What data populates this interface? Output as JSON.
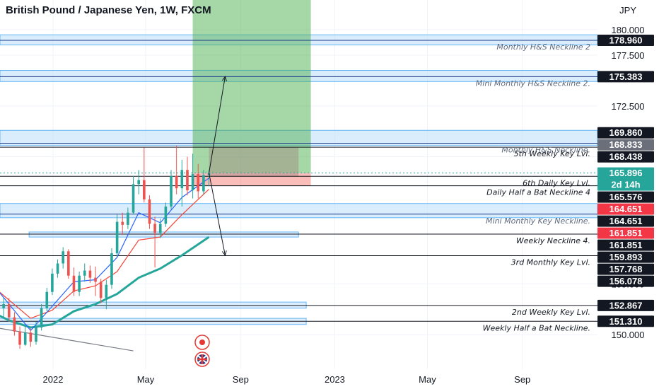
{
  "title": "British Pound / Japanese Yen, 1W, FXCM",
  "currency": "JPY",
  "colors": {
    "up": "#26a69a",
    "down": "#ef5350",
    "zone_fill": "#bbdefb",
    "zone_stroke": "#64b5f6",
    "target_fill": "#4caf50",
    "stop_fill": "#f44336",
    "ema_fast": "#2962ff",
    "ema_mid": "#f44336",
    "ema_slow": "#26a69a",
    "trend": "#787b86"
  },
  "chart_data": {
    "type": "candlestick",
    "y_axis": {
      "scale": "linear",
      "ticks": [
        "180.000",
        "177.500",
        "172.500",
        "167.500",
        "155.000",
        "150.000"
      ]
    },
    "x_axis": {
      "ticks": [
        "2022",
        "May",
        "Sep",
        "2023",
        "May",
        "Sep"
      ]
    },
    "price_badges": [
      {
        "value": "178.960",
        "style": "dark"
      },
      {
        "value": "175.383",
        "style": "dark"
      },
      {
        "value": "169.860",
        "style": "dark"
      },
      {
        "value": "168.833",
        "style": "grey"
      },
      {
        "value": "168.438",
        "style": "dark"
      },
      {
        "value": "165.896",
        "style": "teal",
        "sub": "2d 14h"
      },
      {
        "value": "165.576",
        "style": "dark"
      },
      {
        "value": "164.651",
        "style": "red"
      },
      {
        "value": "164.651",
        "style": "dark"
      },
      {
        "value": "161.851",
        "style": "red"
      },
      {
        "value": "161.851",
        "style": "dark"
      },
      {
        "value": "159.893",
        "style": "dark"
      },
      {
        "value": "157.768",
        "style": "dark"
      },
      {
        "value": "156.078",
        "style": "dark"
      },
      {
        "value": "152.867",
        "style": "dark"
      },
      {
        "value": "151.310",
        "style": "dark"
      }
    ],
    "levels": [
      {
        "label": "Monthly H&S Neckline 2",
        "price": 178.96,
        "kind": "zone",
        "top": 179.5,
        "bottom": 178.5
      },
      {
        "label": "Mini Monthly H&S Neckline 2.",
        "price": 175.383,
        "kind": "zone",
        "top": 176.0,
        "bottom": 174.9
      },
      {
        "label": "Monthly H&S Neckline.",
        "price": 168.833,
        "kind": "zone",
        "top": 170.1,
        "bottom": 168.6
      },
      {
        "label": "5th Weekly Key Lvl.",
        "price": 168.438,
        "kind": "line"
      },
      {
        "label": "6th Daily Key Lvl.",
        "price": 165.576,
        "kind": "line"
      },
      {
        "label": "Daily Half a Bat Neckline 4",
        "price": 164.651,
        "kind": "line"
      },
      {
        "label": "Mini Monthly Key Neckline.",
        "price": 161.851,
        "kind": "zone",
        "top": 162.9,
        "bottom": 161.5
      },
      {
        "label": "Weekly Neckline 4.",
        "price": 159.893,
        "kind": "line"
      },
      {
        "label": "3rd Monthly Key Lvl.",
        "price": 157.768,
        "kind": "line"
      },
      {
        "label": "2nd Weekly Key Lvl.",
        "price": 152.867,
        "kind": "line"
      },
      {
        "label": "Weekly Half a Bat Neckline.",
        "price": 151.31,
        "kind": "line"
      }
    ],
    "position": {
      "entry": 165.896,
      "target": 188.0,
      "stop": 164.651,
      "start": "2022-07-01",
      "end": "2022-12-01"
    },
    "candles": [
      {
        "date": "2021-10-01",
        "o": 156.0,
        "h": 157.0,
        "l": 153.9,
        "c": 154.5
      },
      {
        "date": "2021-10-08",
        "o": 154.5,
        "h": 155.2,
        "l": 153.0,
        "c": 153.4
      },
      {
        "date": "2021-10-15",
        "o": 153.4,
        "h": 154.2,
        "l": 152.4,
        "c": 153.8
      },
      {
        "date": "2021-10-22",
        "o": 153.8,
        "h": 154.4,
        "l": 152.2,
        "c": 152.6
      },
      {
        "date": "2021-10-29",
        "o": 152.6,
        "h": 153.6,
        "l": 151.6,
        "c": 153.0
      },
      {
        "date": "2021-11-05",
        "o": 153.0,
        "h": 153.6,
        "l": 151.3,
        "c": 151.7
      },
      {
        "date": "2021-11-12",
        "o": 151.7,
        "h": 152.2,
        "l": 149.9,
        "c": 150.3
      },
      {
        "date": "2021-11-19",
        "o": 150.3,
        "h": 150.8,
        "l": 148.6,
        "c": 149.0
      },
      {
        "date": "2021-11-26",
        "o": 149.0,
        "h": 150.8,
        "l": 148.9,
        "c": 150.2
      },
      {
        "date": "2021-12-03",
        "o": 150.2,
        "h": 150.6,
        "l": 148.8,
        "c": 149.3
      },
      {
        "date": "2021-12-10",
        "o": 149.3,
        "h": 151.3,
        "l": 149.0,
        "c": 150.7
      },
      {
        "date": "2021-12-17",
        "o": 150.7,
        "h": 153.0,
        "l": 150.4,
        "c": 152.6
      },
      {
        "date": "2021-12-24",
        "o": 152.6,
        "h": 154.6,
        "l": 152.3,
        "c": 154.2
      },
      {
        "date": "2021-12-31",
        "o": 154.2,
        "h": 156.5,
        "l": 153.9,
        "c": 156.0
      },
      {
        "date": "2022-01-07",
        "o": 156.0,
        "h": 157.4,
        "l": 155.6,
        "c": 157.0
      },
      {
        "date": "2022-01-14",
        "o": 157.0,
        "h": 158.6,
        "l": 156.5,
        "c": 158.2
      },
      {
        "date": "2022-01-21",
        "o": 158.2,
        "h": 158.4,
        "l": 155.5,
        "c": 155.8
      },
      {
        "date": "2022-01-28",
        "o": 155.8,
        "h": 156.6,
        "l": 153.8,
        "c": 154.2
      },
      {
        "date": "2022-02-04",
        "o": 154.2,
        "h": 156.2,
        "l": 153.8,
        "c": 155.8
      },
      {
        "date": "2022-02-11",
        "o": 155.8,
        "h": 157.0,
        "l": 155.2,
        "c": 156.3
      },
      {
        "date": "2022-02-18",
        "o": 156.3,
        "h": 156.8,
        "l": 155.1,
        "c": 155.6
      },
      {
        "date": "2022-02-25",
        "o": 155.6,
        "h": 156.7,
        "l": 153.8,
        "c": 155.2
      },
      {
        "date": "2022-03-04",
        "o": 155.2,
        "h": 155.5,
        "l": 153.1,
        "c": 153.6
      },
      {
        "date": "2022-03-11",
        "o": 153.6,
        "h": 155.4,
        "l": 152.5,
        "c": 154.9
      },
      {
        "date": "2022-03-18",
        "o": 154.9,
        "h": 158.5,
        "l": 154.5,
        "c": 158.0
      },
      {
        "date": "2022-03-25",
        "o": 158.0,
        "h": 161.8,
        "l": 157.6,
        "c": 161.1
      },
      {
        "date": "2022-04-01",
        "o": 161.1,
        "h": 162.0,
        "l": 159.8,
        "c": 160.8
      },
      {
        "date": "2022-04-08",
        "o": 160.8,
        "h": 162.5,
        "l": 160.4,
        "c": 162.0
      },
      {
        "date": "2022-04-15",
        "o": 162.0,
        "h": 165.6,
        "l": 161.8,
        "c": 164.8
      },
      {
        "date": "2022-04-22",
        "o": 164.8,
        "h": 166.2,
        "l": 163.8,
        "c": 165.2
      },
      {
        "date": "2022-04-29",
        "o": 165.2,
        "h": 168.4,
        "l": 163.0,
        "c": 163.3
      },
      {
        "date": "2022-05-06",
        "o": 163.3,
        "h": 163.7,
        "l": 160.4,
        "c": 160.9
      },
      {
        "date": "2022-05-13",
        "o": 160.9,
        "h": 161.6,
        "l": 156.6,
        "c": 160.0
      },
      {
        "date": "2022-05-20",
        "o": 160.0,
        "h": 161.4,
        "l": 159.5,
        "c": 160.9
      },
      {
        "date": "2022-05-27",
        "o": 160.9,
        "h": 163.0,
        "l": 160.6,
        "c": 162.6
      },
      {
        "date": "2022-06-03",
        "o": 162.6,
        "h": 166.2,
        "l": 162.3,
        "c": 165.6
      },
      {
        "date": "2022-06-10",
        "o": 165.6,
        "h": 168.6,
        "l": 163.8,
        "c": 164.4
      },
      {
        "date": "2022-06-17",
        "o": 164.4,
        "h": 167.2,
        "l": 162.6,
        "c": 166.2
      },
      {
        "date": "2022-06-24",
        "o": 166.2,
        "h": 167.5,
        "l": 163.7,
        "c": 164.2
      },
      {
        "date": "2022-07-01",
        "o": 164.2,
        "h": 167.8,
        "l": 163.4,
        "c": 165.8
      },
      {
        "date": "2022-07-08",
        "o": 165.8,
        "h": 166.8,
        "l": 163.4,
        "c": 164.1
      },
      {
        "date": "2022-07-15",
        "o": 164.1,
        "h": 166.2,
        "l": 163.8,
        "c": 165.7
      },
      {
        "date": "2022-07-22",
        "o": 165.7,
        "h": 166.2,
        "l": 164.6,
        "c": 165.9
      }
    ],
    "ema_fast": [
      [
        "2021-10-08",
        155.6
      ],
      [
        "2021-11-05",
        153.0
      ],
      [
        "2021-12-03",
        150.4
      ],
      [
        "2021-12-31",
        152.8
      ],
      [
        "2022-01-28",
        155.2
      ],
      [
        "2022-02-25",
        155.4
      ],
      [
        "2022-03-25",
        157.6
      ],
      [
        "2022-04-22",
        162.0
      ],
      [
        "2022-05-20",
        161.0
      ],
      [
        "2022-06-17",
        163.5
      ],
      [
        "2022-07-22",
        165.4
      ]
    ],
    "ema_mid": [
      [
        "2021-10-08",
        155.2
      ],
      [
        "2021-11-05",
        153.4
      ],
      [
        "2021-12-03",
        151.6
      ],
      [
        "2021-12-31",
        152.4
      ],
      [
        "2022-01-28",
        154.3
      ],
      [
        "2022-02-25",
        154.8
      ],
      [
        "2022-03-25",
        156.2
      ],
      [
        "2022-04-22",
        159.3
      ],
      [
        "2022-05-20",
        159.6
      ],
      [
        "2022-06-17",
        161.8
      ],
      [
        "2022-07-22",
        164.3
      ]
    ],
    "ema_slow": [
      [
        "2021-10-01",
        152.7
      ],
      [
        "2021-11-05",
        151.4
      ],
      [
        "2021-12-03",
        150.7
      ],
      [
        "2021-12-31",
        151.0
      ],
      [
        "2022-01-28",
        152.3
      ],
      [
        "2022-02-25",
        153.0
      ],
      [
        "2022-03-25",
        154.0
      ],
      [
        "2022-04-22",
        155.6
      ],
      [
        "2022-05-20",
        156.5
      ],
      [
        "2022-06-17",
        157.8
      ],
      [
        "2022-07-22",
        159.6
      ]
    ],
    "trend_line": [
      [
        "2021-09-01",
        151.3
      ],
      [
        "2022-04-15",
        148.4
      ]
    ],
    "projections": [
      {
        "from": [
          "2022-07-22",
          165.9
        ],
        "to": [
          "2022-08-12",
          175.4
        ]
      },
      {
        "from": [
          "2022-07-22",
          165.9
        ],
        "to": [
          "2022-08-12",
          157.8
        ]
      }
    ]
  }
}
